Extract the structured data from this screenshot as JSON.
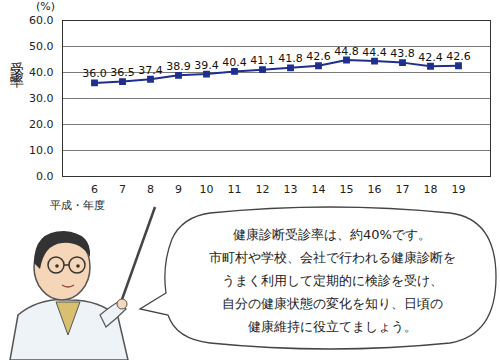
{
  "chart_data": {
    "type": "line",
    "y_unit": "(%)",
    "y_label": "受診率",
    "x_label": "平成・年度",
    "categories": [
      "6",
      "7",
      "8",
      "9",
      "10",
      "11",
      "12",
      "13",
      "14",
      "15",
      "16",
      "17",
      "18",
      "19"
    ],
    "values": [
      36.0,
      36.5,
      37.4,
      38.9,
      39.4,
      40.4,
      41.1,
      41.8,
      42.6,
      44.8,
      44.4,
      43.8,
      42.4,
      42.6
    ],
    "value_labels": [
      "36.0",
      "36.5",
      "37.4",
      "38.9",
      "39.4",
      "40.4",
      "41.1",
      "41.8",
      "42.6",
      "44.8",
      "44.4",
      "43.8",
      "42.4",
      "42.6"
    ],
    "color": "#1f2f8f",
    "marker": "square",
    "data_labels": true,
    "ylim": [
      0,
      60
    ],
    "yticks": [
      {
        "value": 0,
        "label": "0.0"
      },
      {
        "value": 10,
        "label": "10.0"
      },
      {
        "value": 20,
        "label": "20.0"
      },
      {
        "value": 30,
        "label": "30.0"
      },
      {
        "value": 40,
        "label": "40.0"
      },
      {
        "value": 50,
        "label": "50.0"
      },
      {
        "value": 60,
        "label": "60.0"
      }
    ],
    "grid": true,
    "annotation": [
      "健康診断受診率は、約40%です。",
      "市町村や学校、会社で行われる健康診断を",
      "うまく利用して定期的に検診を受け、",
      "自分の健康状態の変化を知り、日頃の",
      "健康維持に役立てましょう。"
    ]
  }
}
